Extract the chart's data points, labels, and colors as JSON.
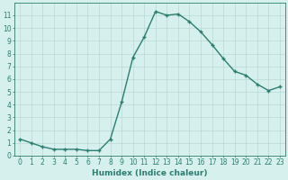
{
  "x": [
    0,
    1,
    2,
    3,
    4,
    5,
    6,
    7,
    8,
    9,
    10,
    11,
    12,
    13,
    14,
    15,
    16,
    17,
    18,
    19,
    20,
    21,
    22,
    23
  ],
  "y": [
    1.3,
    1.0,
    0.7,
    0.5,
    0.5,
    0.5,
    0.4,
    0.4,
    1.3,
    4.2,
    7.7,
    9.3,
    11.3,
    11.0,
    11.1,
    10.5,
    9.7,
    8.7,
    7.6,
    6.6,
    6.3,
    5.6,
    5.1,
    5.4
  ],
  "line_color": "#2d7d6e",
  "marker": "+",
  "marker_size": 3.5,
  "marker_lw": 1.0,
  "line_width": 1.0,
  "bg_color": "#d6f0ee",
  "grid_color": "#b8d8d4",
  "xlabel": "Humidex (Indice chaleur)",
  "ylim": [
    0,
    12
  ],
  "xlim": [
    -0.5,
    23.5
  ],
  "yticks": [
    0,
    1,
    2,
    3,
    4,
    5,
    6,
    7,
    8,
    9,
    10,
    11
  ],
  "xticks": [
    0,
    1,
    2,
    3,
    4,
    5,
    6,
    7,
    8,
    9,
    10,
    11,
    12,
    13,
    14,
    15,
    16,
    17,
    18,
    19,
    20,
    21,
    22,
    23
  ],
  "tick_color": "#2d7d6e",
  "label_fontsize": 6.5,
  "tick_fontsize": 5.5,
  "xlabel_fontweight": "bold"
}
